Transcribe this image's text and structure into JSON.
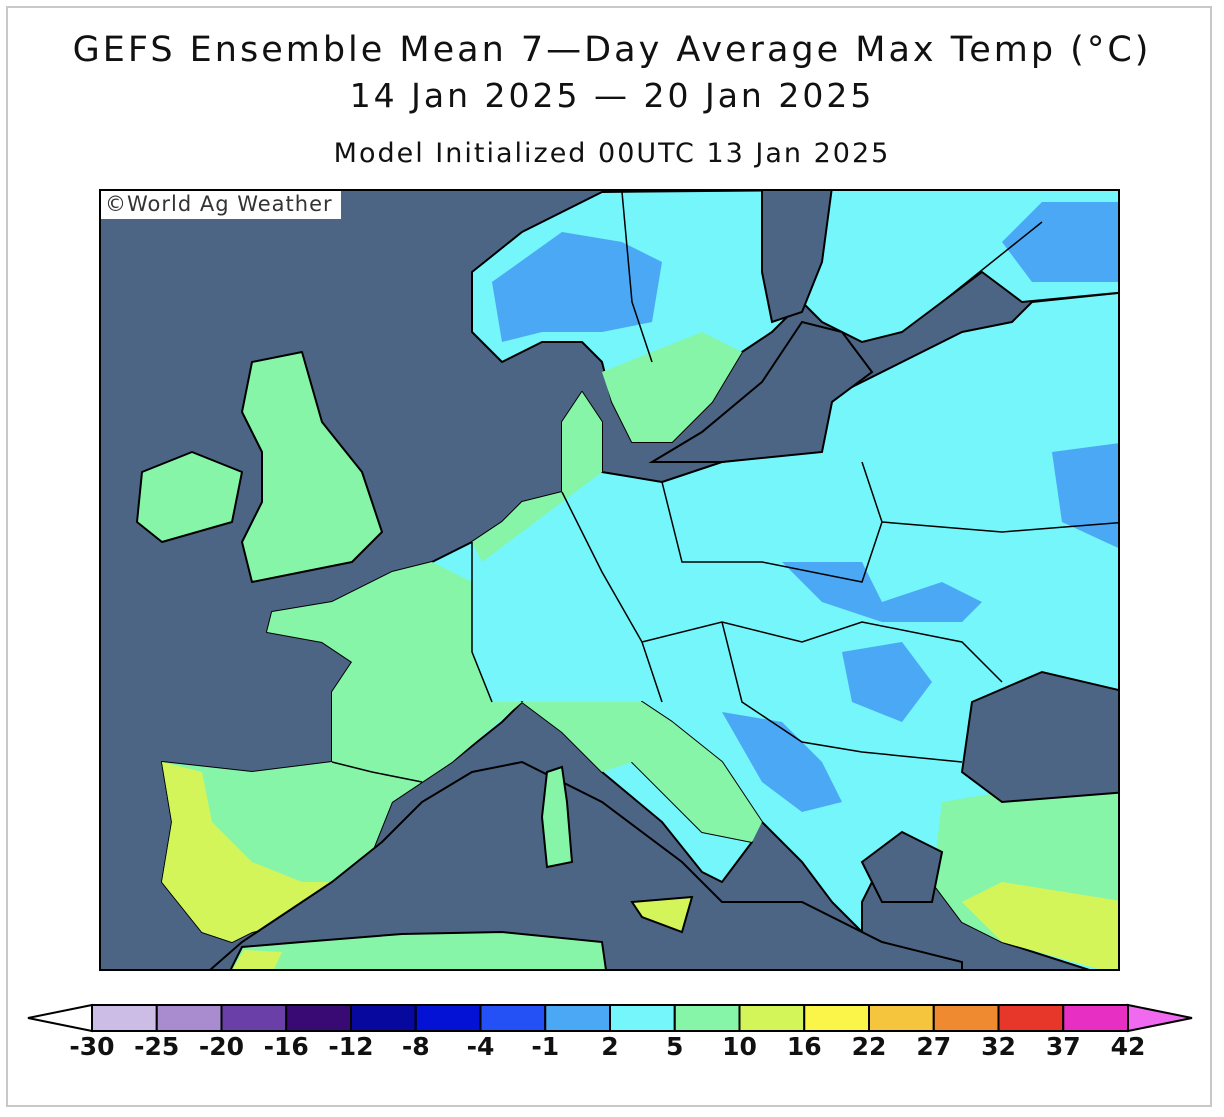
{
  "title": {
    "line1": "GEFS Ensemble Mean 7—Day Average Max Temp (°C)",
    "line2": "14 Jan 2025 — 20 Jan 2025",
    "line3": "Model Initialized 00UTC 13 Jan 2025"
  },
  "map": {
    "region": "Europe",
    "copyright": "©World Ag Weather",
    "colors": {
      "ocean": "#4d6584",
      "minus1_2": "#4aa8f5",
      "2_5": "#74f6fb",
      "5_10": "#86f5a8",
      "10_16": "#d4f55a"
    }
  },
  "colorbar": {
    "labels": [
      "-30",
      "-25",
      "-20",
      "-16",
      "-12",
      "-8",
      "-4",
      "-1",
      "2",
      "5",
      "10",
      "16",
      "22",
      "27",
      "32",
      "37",
      "42"
    ],
    "colors": [
      "#cbbde6",
      "#a98ccf",
      "#6a3fa8",
      "#3a0a74",
      "#06089e",
      "#0412d6",
      "#2451f5",
      "#4aa8f5",
      "#74f6fb",
      "#86f5a8",
      "#d4f55a",
      "#fbf54a",
      "#f6c53e",
      "#f08a30",
      "#e6372a",
      "#e72fc4"
    ],
    "under_color": "#ffffff",
    "over_color": "#f06af0"
  }
}
